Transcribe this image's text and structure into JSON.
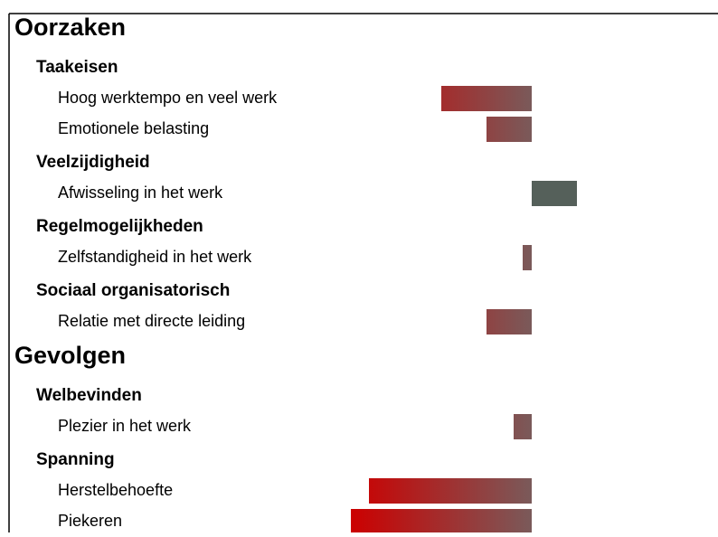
{
  "chart_data": {
    "type": "bar",
    "xlim": [
      -2,
      2
    ],
    "negative_color": "#cc0000",
    "neutral_color": "#7a5a5a",
    "positive_color": "#55605a",
    "sections": [
      {
        "title": "Oorzaken",
        "groups": [
          {
            "title": "Taakeisen",
            "items": [
              {
                "label": "Hoog werktempo en veel werk",
                "value": -1.0
              },
              {
                "label": "Emotionele belasting",
                "value": -0.5
              }
            ]
          },
          {
            "title": "Veelzijdigheid",
            "items": [
              {
                "label": "Afwisseling in het werk",
                "value": 0.5
              }
            ]
          },
          {
            "title": "Regelmogelijkheden",
            "items": [
              {
                "label": "Zelfstandigheid in het werk",
                "value": -0.1
              }
            ]
          },
          {
            "title": "Sociaal organisatorisch",
            "items": [
              {
                "label": "Relatie met directe leiding",
                "value": -0.5
              }
            ]
          }
        ]
      },
      {
        "title": "Gevolgen",
        "groups": [
          {
            "title": "Welbevinden",
            "items": [
              {
                "label": "Plezier in het werk",
                "value": -0.2
              }
            ]
          },
          {
            "title": "Spanning",
            "items": [
              {
                "label": "Herstelbehoefte",
                "value": -1.8
              },
              {
                "label": "Piekeren",
                "value": -2.0
              }
            ]
          }
        ]
      }
    ]
  }
}
